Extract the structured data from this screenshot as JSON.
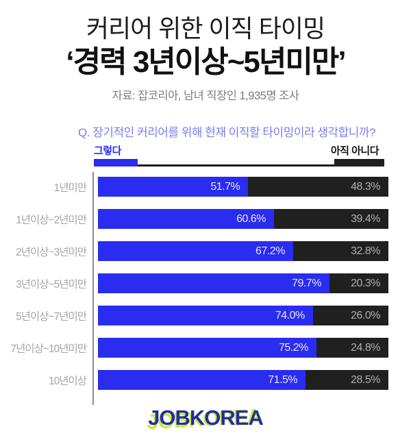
{
  "header": {
    "title_line1": "커리어 위한 이직 타이밍",
    "title_line2": "‘경력 3년이상~5년미만’",
    "source": "자료: 잡코리아, 남녀 직장인 1,935명 조사"
  },
  "question": "Q. 장기적인 커리어를 위해 현재 이직할 타이밍이라 생각합니까?",
  "legend": {
    "yes_label": "그렇다",
    "no_label": "아직 아니다"
  },
  "colors": {
    "yes": "#2a2cf0",
    "no": "#202020",
    "question": "#7a7cf0",
    "category_label": "#a5a5a5",
    "logo_blue": "#272c9e",
    "logo_green": "#c3ef3d"
  },
  "chart_data": {
    "type": "bar",
    "orientation": "horizontal-stacked",
    "title": "커리어 위한 이직 타이밍 ‘경력 3년이상~5년미만’",
    "question": "Q. 장기적인 커리어를 위해 현재 이직할 타이밍이라 생각합니까?",
    "categories": [
      "1년미만",
      "1년이상~2년미만",
      "2년이상~3년미만",
      "3년이상~5년미만",
      "5년이상~7년미만",
      "7년이상~10년미만",
      "10년이상"
    ],
    "series": [
      {
        "name": "그렇다",
        "color": "#2a2cf0",
        "values": [
          51.7,
          60.6,
          67.2,
          79.7,
          74.0,
          75.2,
          71.5
        ]
      },
      {
        "name": "아직 아니다",
        "color": "#202020",
        "values": [
          48.3,
          39.4,
          32.8,
          20.3,
          26.0,
          24.8,
          28.5
        ]
      }
    ],
    "value_labels": {
      "yes": [
        "51.7%",
        "60.6%",
        "67.2%",
        "79.7%",
        "74.0%",
        "75.2%",
        "71.5%"
      ],
      "no": [
        "48.3%",
        "39.4%",
        "32.8%",
        "20.3%",
        "26.0%",
        "24.8%",
        "28.5%"
      ]
    },
    "xlim": [
      0,
      100
    ],
    "grid": false,
    "legend_position": "top"
  },
  "logo": {
    "text": "JOBKOREA"
  }
}
